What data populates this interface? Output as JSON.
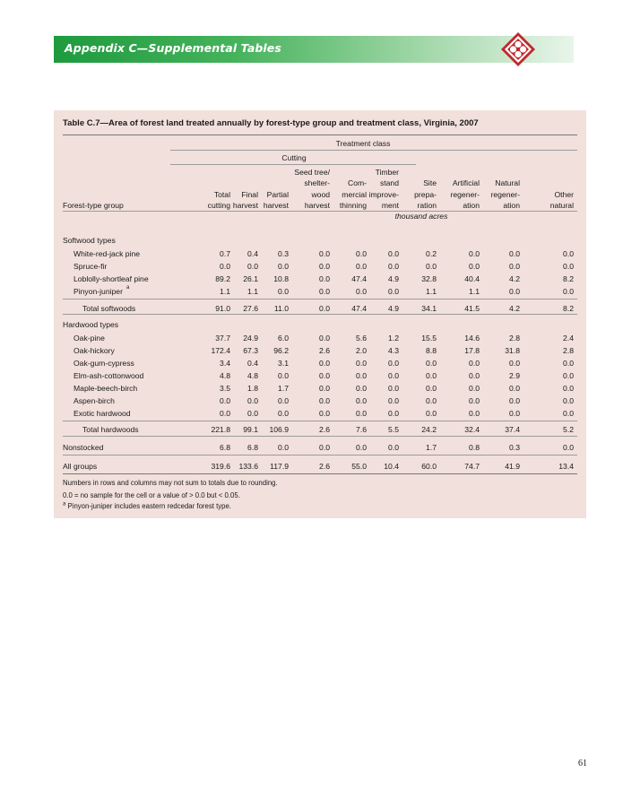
{
  "header": {
    "title": "Appendix C—Supplemental Tables"
  },
  "table": {
    "title": "Table C.7—Area of forest land treated annually by forest-type group and treatment class, Virginia, 2007",
    "span_treatment": "Treatment class",
    "span_cutting": "Cutting",
    "row_header": "Forest-type group",
    "columns": [
      [
        "Total",
        "cutting"
      ],
      [
        "Final",
        "harvest"
      ],
      [
        "Partial",
        "harvest"
      ],
      [
        "Seed tree/",
        "shelter-",
        "wood",
        "harvest"
      ],
      [
        "Com-",
        "mercial",
        "thinning"
      ],
      [
        "Timber",
        "stand",
        "improve-",
        "ment"
      ],
      [
        "Site",
        "prepa-",
        "ration"
      ],
      [
        "Artificial",
        "regener-",
        "ation"
      ],
      [
        "Natural",
        "regener-",
        "ation"
      ],
      [
        "Other",
        "natural"
      ]
    ],
    "units": "thousand acres",
    "softwood_label": "Softwood types",
    "softwood_rows": [
      {
        "label": "White-red-jack pine",
        "values": [
          "0.7",
          "0.4",
          "0.3",
          "0.0",
          "0.0",
          "0.0",
          "0.2",
          "0.0",
          "0.0",
          "0.0"
        ]
      },
      {
        "label": "Spruce-fir",
        "values": [
          "0.0",
          "0.0",
          "0.0",
          "0.0",
          "0.0",
          "0.0",
          "0.0",
          "0.0",
          "0.0",
          "0.0"
        ]
      },
      {
        "label": "Loblolly-shortleaf pine",
        "values": [
          "89.2",
          "26.1",
          "10.8",
          "0.0",
          "47.4",
          "4.9",
          "32.8",
          "40.4",
          "4.2",
          "8.2"
        ]
      },
      {
        "label": "Pinyon-juniper",
        "sup": "a",
        "values": [
          "1.1",
          "1.1",
          "0.0",
          "0.0",
          "0.0",
          "0.0",
          "1.1",
          "1.1",
          "0.0",
          "0.0"
        ]
      }
    ],
    "softwood_total": {
      "label": "Total softwoods",
      "values": [
        "91.0",
        "27.6",
        "11.0",
        "0.0",
        "47.4",
        "4.9",
        "34.1",
        "41.5",
        "4.2",
        "8.2"
      ]
    },
    "hardwood_label": "Hardwood types",
    "hardwood_rows": [
      {
        "label": "Oak-pine",
        "values": [
          "37.7",
          "24.9",
          "6.0",
          "0.0",
          "5.6",
          "1.2",
          "15.5",
          "14.6",
          "2.8",
          "2.4"
        ]
      },
      {
        "label": "Oak-hickory",
        "values": [
          "172.4",
          "67.3",
          "96.2",
          "2.6",
          "2.0",
          "4.3",
          "8.8",
          "17.8",
          "31.8",
          "2.8"
        ]
      },
      {
        "label": "Oak-gum-cypress",
        "values": [
          "3.4",
          "0.4",
          "3.1",
          "0.0",
          "0.0",
          "0.0",
          "0.0",
          "0.0",
          "0.0",
          "0.0"
        ]
      },
      {
        "label": "Elm-ash-cottonwood",
        "values": [
          "4.8",
          "4.8",
          "0.0",
          "0.0",
          "0.0",
          "0.0",
          "0.0",
          "0.0",
          "2.9",
          "0.0"
        ]
      },
      {
        "label": "Maple-beech-birch",
        "values": [
          "3.5",
          "1.8",
          "1.7",
          "0.0",
          "0.0",
          "0.0",
          "0.0",
          "0.0",
          "0.0",
          "0.0"
        ]
      },
      {
        "label": "Aspen-birch",
        "values": [
          "0.0",
          "0.0",
          "0.0",
          "0.0",
          "0.0",
          "0.0",
          "0.0",
          "0.0",
          "0.0",
          "0.0"
        ]
      },
      {
        "label": "Exotic hardwood",
        "values": [
          "0.0",
          "0.0",
          "0.0",
          "0.0",
          "0.0",
          "0.0",
          "0.0",
          "0.0",
          "0.0",
          "0.0"
        ]
      }
    ],
    "hardwood_total": {
      "label": "Total hardwoods",
      "values": [
        "221.8",
        "99.1",
        "106.9",
        "2.6",
        "7.6",
        "5.5",
        "24.2",
        "32.4",
        "37.4",
        "5.2"
      ]
    },
    "nonstocked": {
      "label": "Nonstocked",
      "values": [
        "6.8",
        "6.8",
        "0.0",
        "0.0",
        "0.0",
        "0.0",
        "1.7",
        "0.8",
        "0.3",
        "0.0"
      ]
    },
    "all_groups": {
      "label": "All groups",
      "values": [
        "319.6",
        "133.6",
        "117.9",
        "2.6",
        "55.0",
        "10.4",
        "60.0",
        "74.7",
        "41.9",
        "13.4"
      ]
    },
    "notes": [
      "Numbers in rows and columns may not sum to totals due to rounding.",
      "0.0 = no sample for the cell or a value of > 0.0 but < 0.05."
    ],
    "footnote": {
      "marker": "a",
      "text": "Pinyon-juniper includes eastern redcedar forest type."
    }
  },
  "page_number": "61",
  "colors": {
    "banner_green": "#1e9a3e",
    "panel_bg": "#f1e0dc",
    "logo_red": "#c0282d"
  }
}
